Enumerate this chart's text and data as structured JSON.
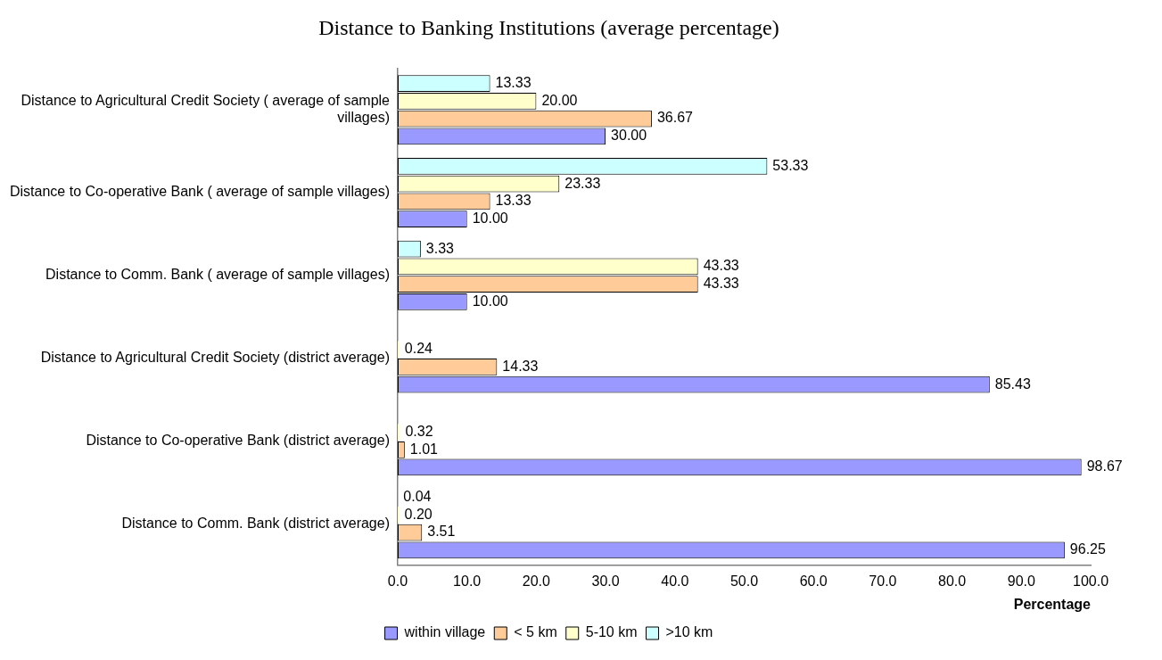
{
  "chart_data": {
    "type": "bar",
    "orientation": "horizontal",
    "title": "Distance to Banking Institutions (average percentage)",
    "xlabel": "Percentage",
    "categories": [
      "Distance to Agricultural Credit Society ( average of sample villages)",
      "Distance to Co-operative Bank ( average of sample villages)",
      "Distance to Comm. Bank ( average of sample villages)",
      "Distance to Agricultural Credit Society (district average)",
      "Distance to Co-operative Bank (district average)",
      "Distance to Comm. Bank (district average)"
    ],
    "series": [
      {
        "name": "within village",
        "color": "#9999ff",
        "values": [
          30.0,
          10.0,
          10.0,
          85.43,
          98.67,
          96.25
        ],
        "value_labels": [
          "30.00",
          "10.00",
          "10.00",
          "85.43",
          "98.67",
          "96.25"
        ]
      },
      {
        "name": "< 5 km",
        "color": "#ffcc99",
        "values": [
          36.67,
          13.33,
          43.33,
          14.33,
          1.01,
          3.51
        ],
        "value_labels": [
          "36.67",
          "13.33",
          "43.33",
          "14.33",
          "1.01",
          "3.51"
        ]
      },
      {
        "name": "5-10 km",
        "color": "#ffffcc",
        "values": [
          20.0,
          23.33,
          43.33,
          0.24,
          0.32,
          0.2
        ],
        "value_labels": [
          "20.00",
          "23.33",
          "43.33",
          "0.24",
          "0.32",
          "0.20"
        ]
      },
      {
        "name": ">10 km",
        "color": "#ccffff",
        "values": [
          13.33,
          53.33,
          3.33,
          null,
          null,
          0.04
        ],
        "value_labels": [
          "13.33",
          "53.33",
          "3.33",
          null,
          null,
          "0.04"
        ]
      }
    ],
    "xlim": [
      0,
      100
    ],
    "xticks": [
      {
        "value": 0,
        "label": "0.0"
      },
      {
        "value": 10,
        "label": "10.0"
      },
      {
        "value": 20,
        "label": "20.0"
      },
      {
        "value": 30,
        "label": "30.0"
      },
      {
        "value": 40,
        "label": "40.0"
      },
      {
        "value": 50,
        "label": "50.0"
      },
      {
        "value": 60,
        "label": "60.0"
      },
      {
        "value": 70,
        "label": "70.0"
      },
      {
        "value": 80,
        "label": "80.0"
      },
      {
        "value": 90,
        "label": "90.0"
      },
      {
        "value": 100,
        "label": "100.0"
      }
    ],
    "grid": false,
    "legend": "bottom"
  }
}
